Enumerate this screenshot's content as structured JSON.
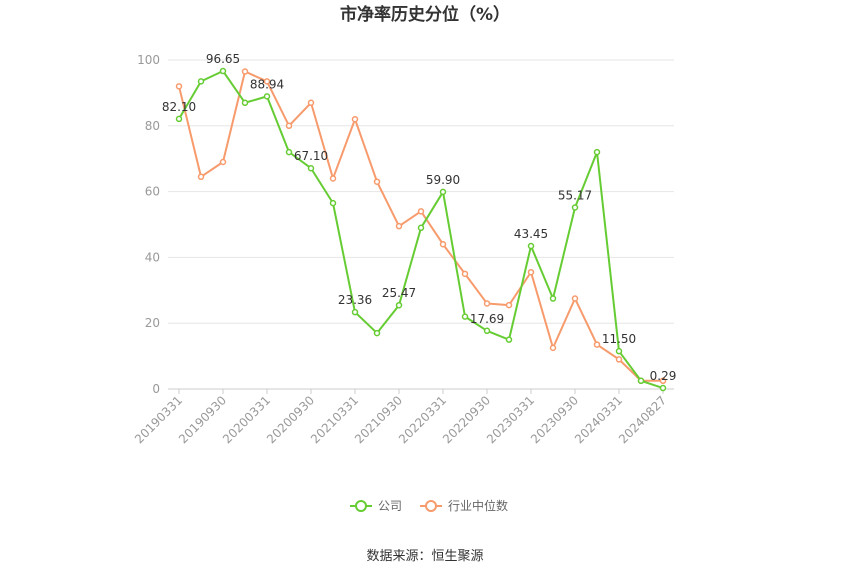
{
  "chart_data": {
    "type": "line",
    "title": "市净率历史分位（%）",
    "ylim": [
      0,
      100
    ],
    "yticks": [
      0,
      20,
      40,
      60,
      80,
      100
    ],
    "xlabels": [
      "20190331",
      "20190930",
      "20200331",
      "20200930",
      "20210331",
      "20210930",
      "20220331",
      "20220930",
      "20230331",
      "20230930",
      "20240331",
      "20240827"
    ],
    "grid": "horizontal",
    "legend_position": "bottom",
    "series": [
      {
        "name": "公司",
        "color": "#66cc33",
        "values": [
          82.1,
          93.5,
          96.65,
          87.0,
          88.94,
          72.0,
          67.1,
          56.5,
          23.36,
          17.0,
          25.47,
          49.0,
          59.9,
          22.0,
          17.69,
          15.0,
          43.45,
          27.5,
          55.17,
          72.0,
          11.5,
          2.5,
          0.29
        ],
        "labels": {
          "0": "82.10",
          "2": "96.65",
          "4": "88.94",
          "6": "67.10",
          "8": "23.36",
          "10": "25.47",
          "12": "59.90",
          "14": "17.69",
          "16": "43.45",
          "18": "55.17",
          "20": "11.50",
          "22": "0.29"
        }
      },
      {
        "name": "行业中位数",
        "color": "#f79a6c",
        "values": [
          92.0,
          64.5,
          69.0,
          96.5,
          93.5,
          80.0,
          87.0,
          64.0,
          82.0,
          63.0,
          49.5,
          54.0,
          44.0,
          35.0,
          26.0,
          25.5,
          35.5,
          12.5,
          27.5,
          13.5,
          9.0,
          2.5,
          2.5
        ]
      }
    ],
    "source_text": "数据来源：恒生聚源"
  }
}
